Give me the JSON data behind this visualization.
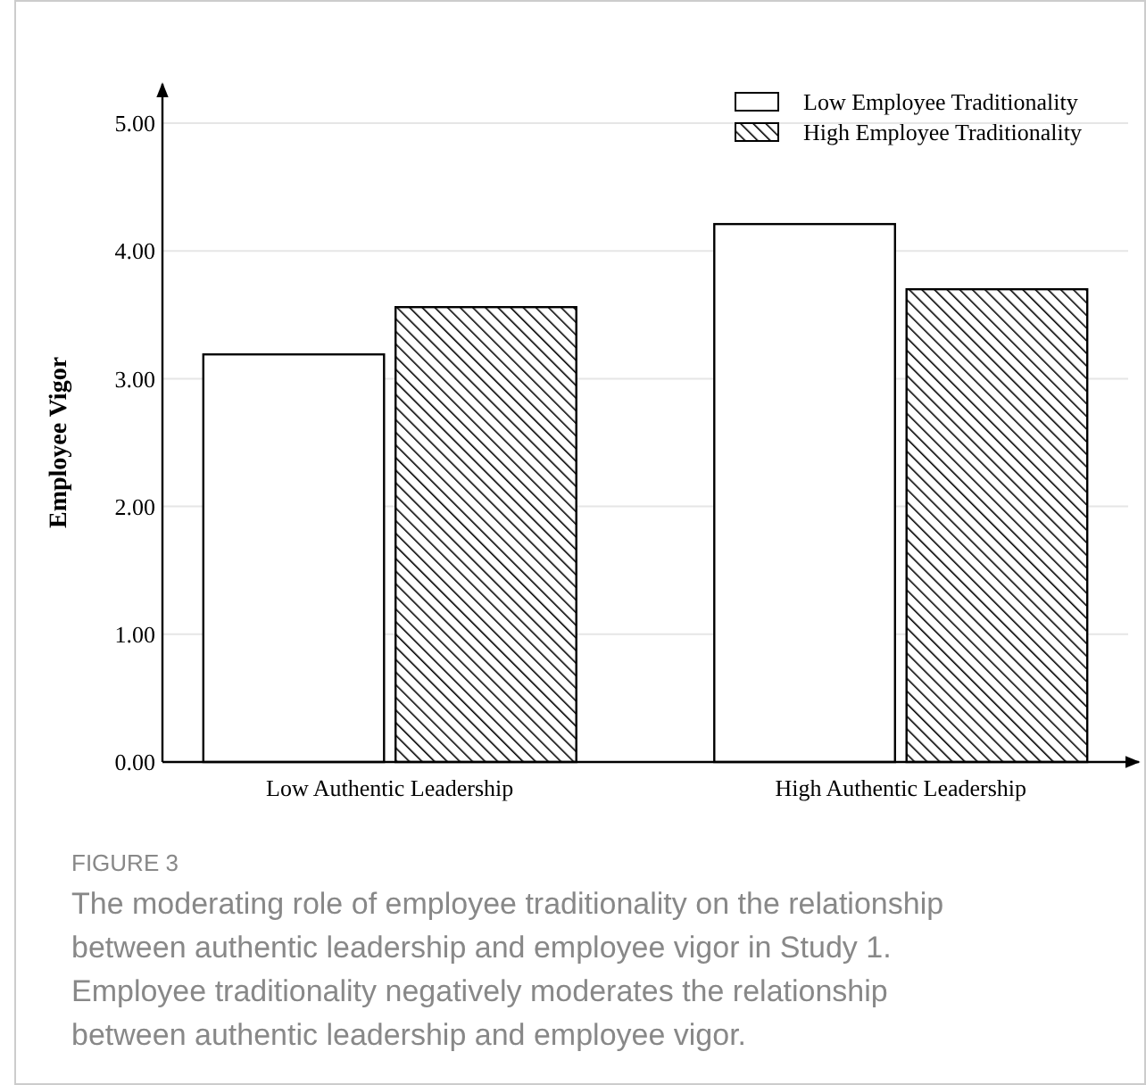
{
  "chart_data": {
    "type": "bar",
    "title": "FIGURE 3",
    "subtitle": "The moderating role of employee traditionality on the relationship between authentic leadership and employee vigor in Study 1. Employee traditionality negatively moderates the relationship between authentic leadership and employee vigor.",
    "ylabel": "Employee Vigor",
    "categories": [
      "Low Authentic Leadership",
      "High Authentic Leadership"
    ],
    "series": [
      {
        "name": "Low Employee Traditionality",
        "color": "#ffffff",
        "values": [
          3.19,
          4.21
        ]
      },
      {
        "name": "High Employee Traditionality",
        "color": "#000000",
        "values": [
          3.56,
          3.7
        ]
      }
    ],
    "ylim": [
      0,
      5
    ],
    "yticks": [
      {
        "value": 0,
        "label": "0.00"
      },
      {
        "value": 1,
        "label": "1.00"
      },
      {
        "value": 2,
        "label": "2.00"
      },
      {
        "value": 3,
        "label": "3.00"
      },
      {
        "value": 4,
        "label": "4.00"
      },
      {
        "value": 5,
        "label": "5.00"
      }
    ],
    "grid": "y",
    "legend": "top right"
  }
}
